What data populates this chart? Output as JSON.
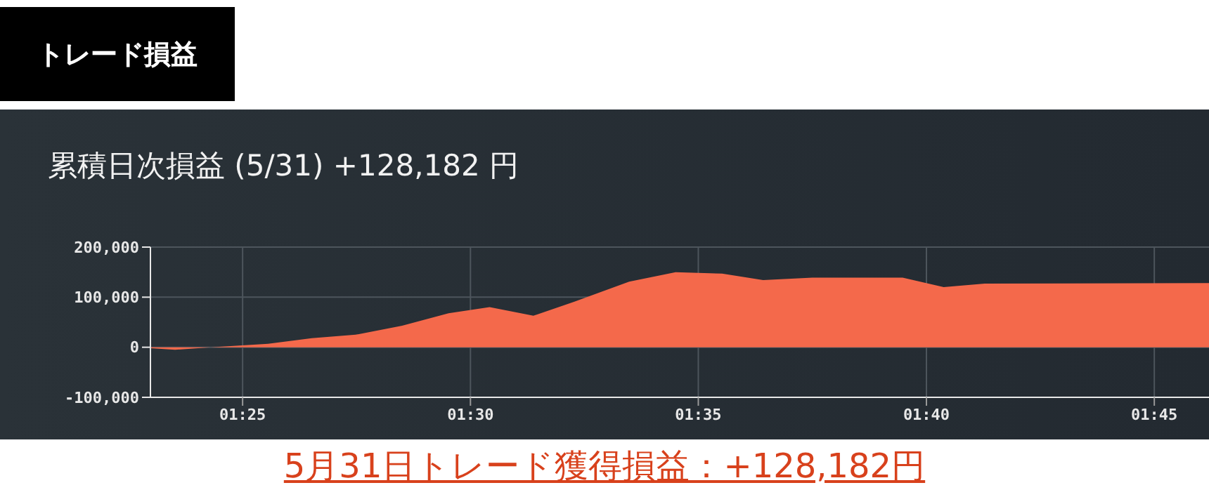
{
  "chart_data": {
    "type": "area",
    "title": "トレード損益",
    "subtitle": "累積日次損益 (5/31) +128,182 円",
    "annotations": [
      "5月31日トレード獲得損益：+128,182円"
    ],
    "x": [
      1.383,
      1.392,
      1.405,
      1.426,
      1.442,
      1.458,
      1.475,
      1.492,
      1.507,
      1.523,
      1.538,
      1.548,
      1.558,
      1.575,
      1.592,
      1.607,
      1.625,
      1.658,
      1.673,
      1.688,
      1.77
    ],
    "series": [
      {
        "color": "#f4694b",
        "values": [
          -2000,
          -5000,
          0,
          7000,
          18000,
          25000,
          43000,
          68000,
          80000,
          63000,
          91000,
          111000,
          131000,
          150000,
          147000,
          134000,
          139000,
          139000,
          120000,
          127000,
          128000
        ]
      }
    ],
    "xlim": [
      1.383,
      1.77
    ],
    "xticks": [
      {
        "value": 1.4167,
        "label": "01:25"
      },
      {
        "value": 1.5,
        "label": "01:30"
      },
      {
        "value": 1.5833,
        "label": "01:35"
      },
      {
        "value": 1.6667,
        "label": "01:40"
      },
      {
        "value": 1.75,
        "label": "01:45"
      }
    ],
    "ylim": [
      -100000,
      200000
    ],
    "yticks": [
      {
        "value": -100000,
        "label": "-100,000"
      },
      {
        "value": 0,
        "label": "0"
      },
      {
        "value": 100000,
        "label": "100,000"
      },
      {
        "value": 200000,
        "label": "200,000"
      }
    ],
    "grid": true
  }
}
